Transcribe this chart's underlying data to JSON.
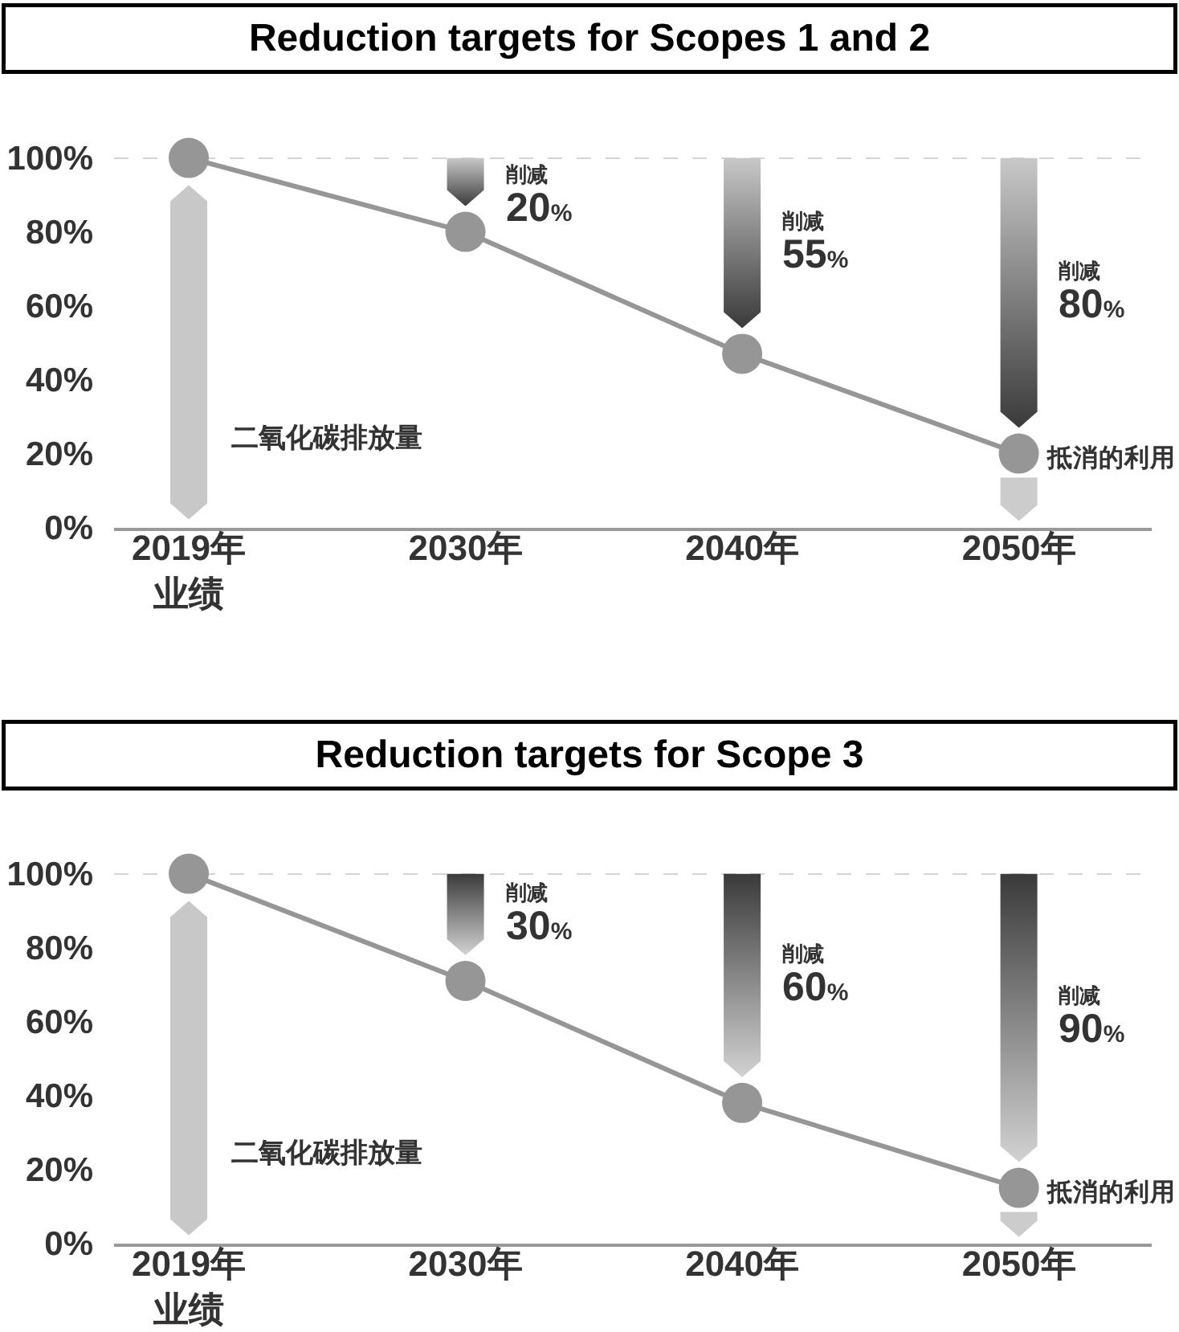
{
  "chart_data": [
    {
      "type": "line",
      "title": "Reduction targets for Scopes 1 and 2",
      "categories": [
        "2019年业绩",
        "2030年",
        "2040年",
        "2050年"
      ],
      "values": [
        100,
        80,
        47,
        20
      ],
      "color": "#969696",
      "marker": "circle",
      "line_style": "solid",
      "ylim": [
        0,
        100
      ],
      "yticks": [
        {
          "value": 0,
          "label": "0%"
        },
        {
          "value": 20,
          "label": "20%"
        },
        {
          "value": 40,
          "label": "40%"
        },
        {
          "value": 60,
          "label": "60%"
        },
        {
          "value": 80,
          "label": "80%"
        },
        {
          "value": 100,
          "label": "100%"
        }
      ],
      "ref_lines": [
        {
          "axis": "y",
          "value": 100,
          "color": "#aaaaaa",
          "line_style": "dashed"
        }
      ],
      "annotations": [
        "削减\n20%",
        "削减\n55%",
        "削减\n80%",
        "二氧化碳排放量",
        "抵消的利用"
      ]
    },
    {
      "type": "line",
      "title": "Reduction targets for Scope 3",
      "categories": [
        "2019年业绩",
        "2030年",
        "2040年",
        "2050年"
      ],
      "values": [
        100,
        71,
        38,
        15
      ],
      "color": "#969696",
      "marker": "circle",
      "line_style": "solid",
      "ylim": [
        0,
        100
      ],
      "yticks": [
        {
          "value": 0,
          "label": "0%"
        },
        {
          "value": 20,
          "label": "20%"
        },
        {
          "value": 40,
          "label": "40%"
        },
        {
          "value": 60,
          "label": "60%"
        },
        {
          "value": 80,
          "label": "80%"
        },
        {
          "value": 100,
          "label": "100%"
        }
      ],
      "ref_lines": [
        {
          "axis": "y",
          "value": 100,
          "color": "#aaaaaa",
          "line_style": "dashed"
        }
      ],
      "annotations": [
        "削减\n30%",
        "削减\n60%",
        "削减\n90%",
        "二氧化碳排放量",
        "抵消的利用"
      ]
    }
  ]
}
